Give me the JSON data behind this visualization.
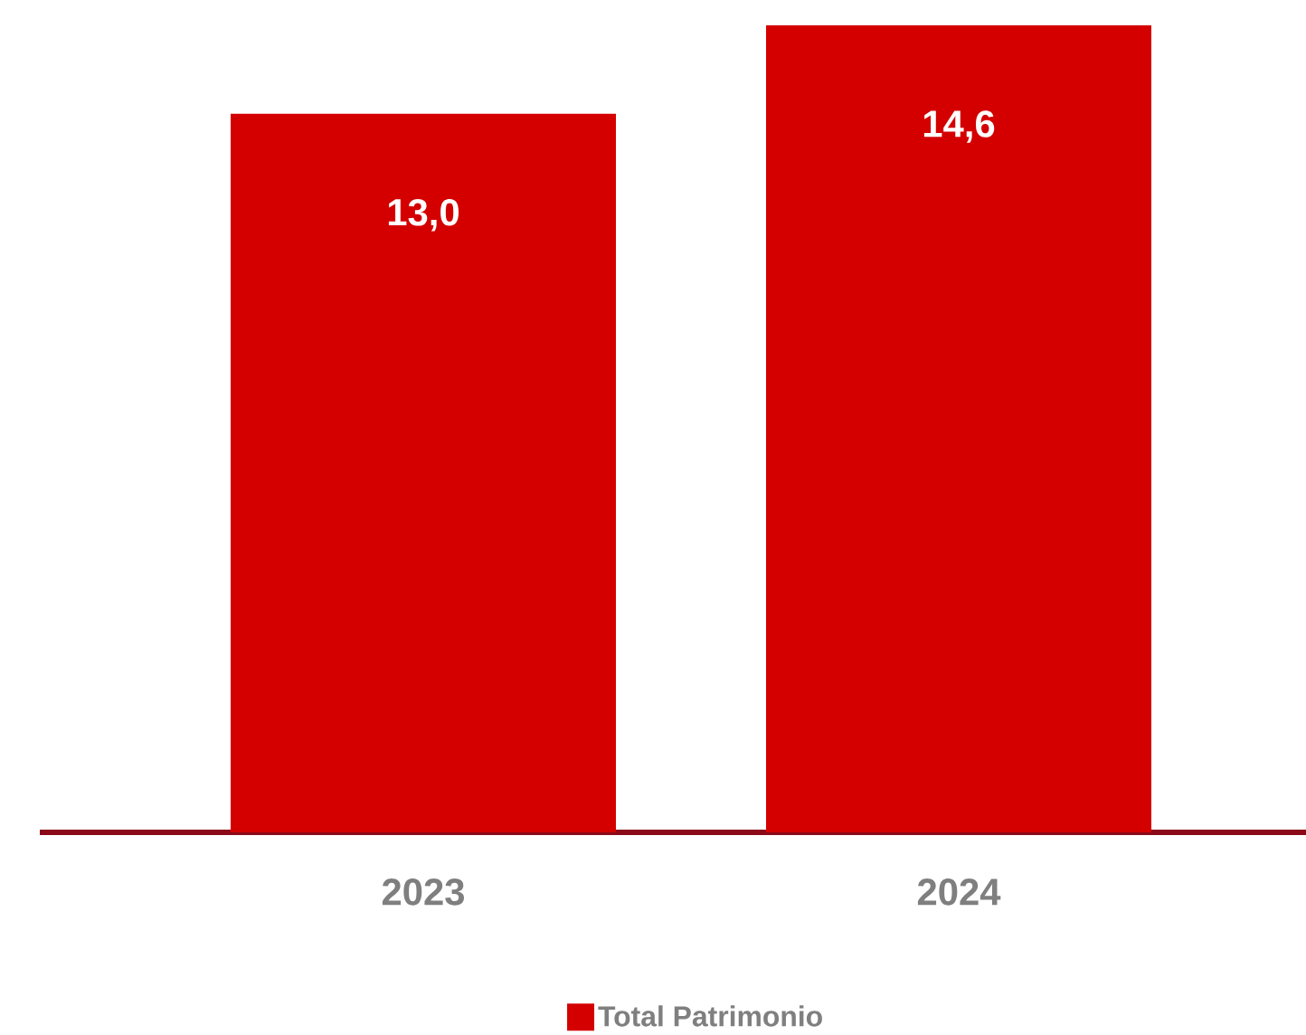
{
  "chart_data": {
    "type": "bar",
    "categories": [
      "2023",
      "2024"
    ],
    "series": [
      {
        "name": "Total Patrimonio",
        "color": "#d40000",
        "values": [
          13.0,
          14.6
        ],
        "value_labels": [
          "13,0",
          "14,6"
        ]
      }
    ],
    "legend": "bottom"
  }
}
